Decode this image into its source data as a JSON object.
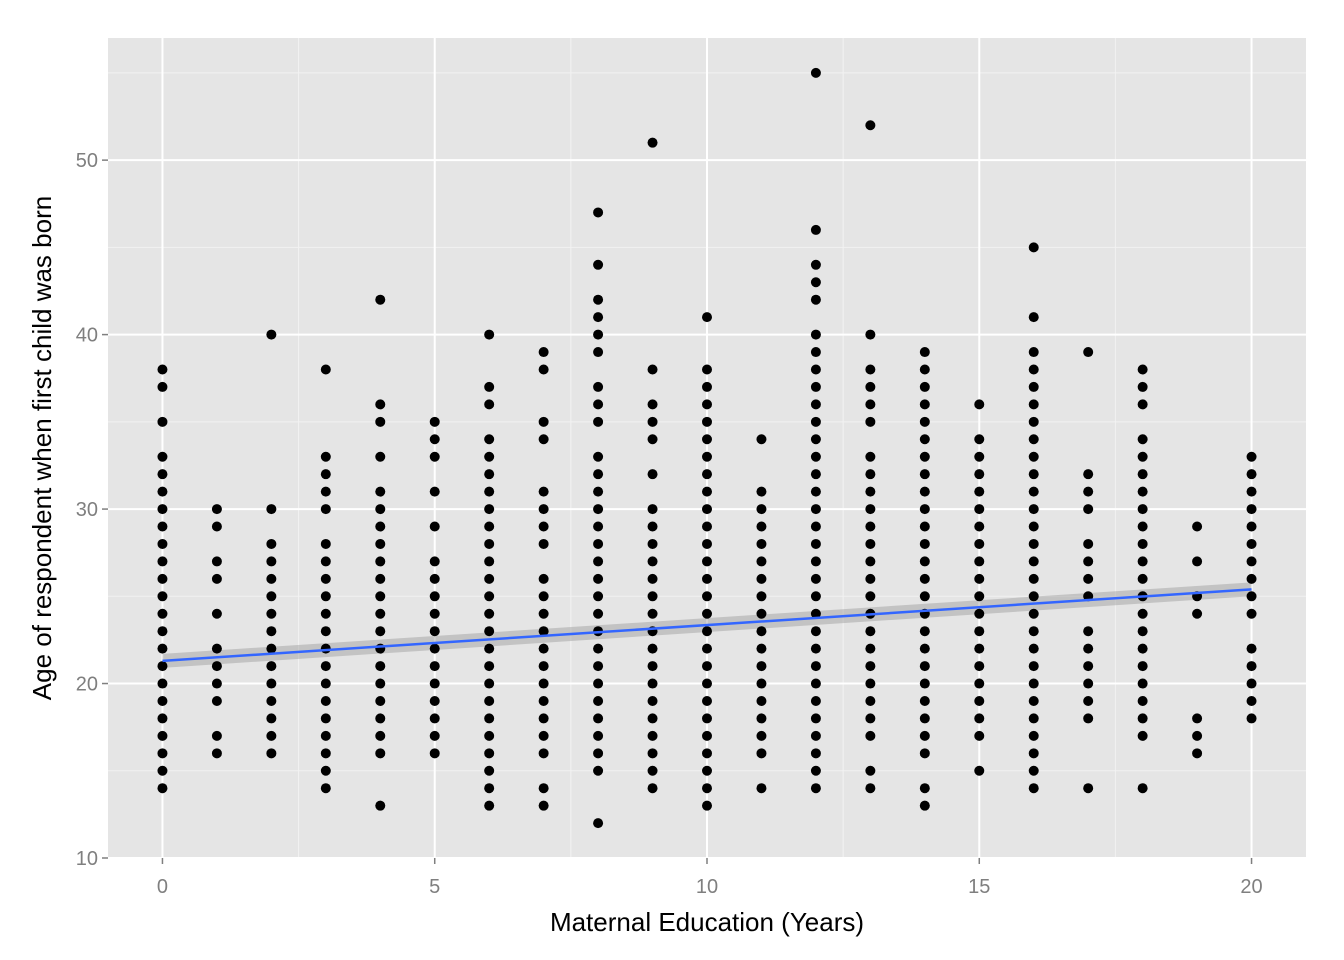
{
  "chart_data": {
    "type": "scatter",
    "title": "",
    "xlabel": "Maternal Education (Years)",
    "ylabel": "Age of respondent when first child was born",
    "xlim": [
      -1,
      21
    ],
    "ylim": [
      10,
      57
    ],
    "x_ticks": [
      0,
      5,
      10,
      15,
      20
    ],
    "y_ticks": [
      10,
      20,
      30,
      40,
      50
    ],
    "x_tick_labels": [
      "0",
      "5",
      "10",
      "15",
      "20"
    ],
    "y_tick_labels": [
      "10",
      "20",
      "30",
      "40",
      "50"
    ],
    "grid": true,
    "legend": "none",
    "colors": {
      "panel_bg": "#e5e5e5",
      "grid_major": "#ffffff",
      "grid_minor": "#f2f2f2",
      "point": "#000000",
      "fit_line": "#3366ff",
      "ribbon": "#999999"
    },
    "points_by_x": [
      {
        "x": 0,
        "y": [
          14,
          15,
          16,
          17,
          18,
          19,
          20,
          21,
          22,
          23,
          24,
          25,
          26,
          27,
          28,
          29,
          30,
          31,
          32,
          33,
          35,
          37,
          38
        ]
      },
      {
        "x": 1,
        "y": [
          16,
          17,
          19,
          20,
          21,
          22,
          24,
          26,
          27,
          29,
          30
        ]
      },
      {
        "x": 2,
        "y": [
          16,
          17,
          18,
          19,
          20,
          21,
          22,
          23,
          24,
          25,
          26,
          27,
          28,
          30,
          40
        ]
      },
      {
        "x": 3,
        "y": [
          14,
          15,
          16,
          17,
          18,
          19,
          20,
          21,
          22,
          23,
          24,
          25,
          26,
          27,
          28,
          30,
          31,
          32,
          33,
          38
        ]
      },
      {
        "x": 4,
        "y": [
          13,
          16,
          17,
          18,
          19,
          20,
          21,
          22,
          23,
          24,
          25,
          26,
          27,
          28,
          29,
          30,
          31,
          33,
          35,
          36,
          42
        ]
      },
      {
        "x": 5,
        "y": [
          16,
          17,
          18,
          19,
          20,
          21,
          22,
          23,
          24,
          25,
          26,
          27,
          29,
          31,
          33,
          34,
          35
        ]
      },
      {
        "x": 6,
        "y": [
          13,
          14,
          15,
          16,
          17,
          18,
          19,
          20,
          21,
          22,
          23,
          24,
          25,
          26,
          27,
          28,
          29,
          30,
          31,
          32,
          33,
          34,
          36,
          37,
          40
        ]
      },
      {
        "x": 7,
        "y": [
          13,
          14,
          16,
          17,
          18,
          19,
          20,
          21,
          22,
          23,
          24,
          25,
          26,
          28,
          29,
          30,
          31,
          34,
          35,
          38,
          39
        ]
      },
      {
        "x": 8,
        "y": [
          12,
          15,
          16,
          17,
          18,
          19,
          20,
          21,
          22,
          23,
          24,
          25,
          26,
          27,
          28,
          29,
          30,
          31,
          32,
          33,
          35,
          36,
          37,
          39,
          40,
          41,
          42,
          44,
          47
        ]
      },
      {
        "x": 9,
        "y": [
          14,
          15,
          16,
          17,
          18,
          19,
          20,
          21,
          22,
          23,
          24,
          25,
          26,
          27,
          28,
          29,
          30,
          32,
          34,
          35,
          36,
          38,
          51
        ]
      },
      {
        "x": 10,
        "y": [
          13,
          14,
          15,
          16,
          17,
          18,
          19,
          20,
          21,
          22,
          23,
          24,
          25,
          26,
          27,
          28,
          29,
          30,
          31,
          32,
          33,
          34,
          35,
          36,
          37,
          38,
          41
        ]
      },
      {
        "x": 11,
        "y": [
          14,
          16,
          17,
          18,
          19,
          20,
          21,
          22,
          23,
          24,
          25,
          26,
          27,
          28,
          29,
          30,
          31,
          34
        ]
      },
      {
        "x": 12,
        "y": [
          14,
          15,
          16,
          17,
          18,
          19,
          20,
          21,
          22,
          23,
          24,
          25,
          26,
          27,
          28,
          29,
          30,
          31,
          32,
          33,
          34,
          35,
          36,
          37,
          38,
          39,
          40,
          42,
          43,
          44,
          46,
          55
        ]
      },
      {
        "x": 13,
        "y": [
          14,
          15,
          17,
          18,
          19,
          20,
          21,
          22,
          23,
          24,
          25,
          26,
          27,
          28,
          29,
          30,
          31,
          32,
          33,
          35,
          36,
          37,
          38,
          40,
          52
        ]
      },
      {
        "x": 14,
        "y": [
          13,
          14,
          16,
          17,
          18,
          19,
          20,
          21,
          22,
          23,
          24,
          25,
          26,
          27,
          28,
          29,
          30,
          31,
          32,
          33,
          34,
          35,
          36,
          37,
          38,
          39
        ]
      },
      {
        "x": 15,
        "y": [
          15,
          17,
          18,
          19,
          20,
          21,
          22,
          23,
          24,
          25,
          26,
          27,
          28,
          29,
          30,
          31,
          32,
          33,
          34,
          36
        ]
      },
      {
        "x": 16,
        "y": [
          14,
          15,
          16,
          17,
          18,
          19,
          20,
          21,
          22,
          23,
          24,
          25,
          26,
          27,
          28,
          29,
          30,
          31,
          32,
          33,
          34,
          35,
          36,
          37,
          38,
          39,
          41,
          45
        ]
      },
      {
        "x": 17,
        "y": [
          14,
          18,
          19,
          20,
          21,
          22,
          23,
          25,
          26,
          27,
          28,
          30,
          31,
          32,
          39
        ]
      },
      {
        "x": 18,
        "y": [
          14,
          17,
          18,
          19,
          20,
          21,
          22,
          23,
          24,
          25,
          26,
          27,
          28,
          29,
          30,
          31,
          32,
          33,
          34,
          36,
          37,
          38
        ]
      },
      {
        "x": 19,
        "y": [
          16,
          17,
          18,
          24,
          25,
          27,
          29
        ]
      },
      {
        "x": 20,
        "y": [
          18,
          19,
          20,
          21,
          22,
          24,
          25,
          26,
          27,
          28,
          29,
          30,
          31,
          32,
          33
        ]
      }
    ],
    "fit_line": {
      "x": [
        0,
        20
      ],
      "y": [
        21.3,
        25.4
      ]
    },
    "ribbon": {
      "x": [
        0,
        20
      ],
      "y_lower": [
        20.9,
        25.0
      ],
      "y_upper": [
        21.7,
        25.8
      ]
    }
  }
}
